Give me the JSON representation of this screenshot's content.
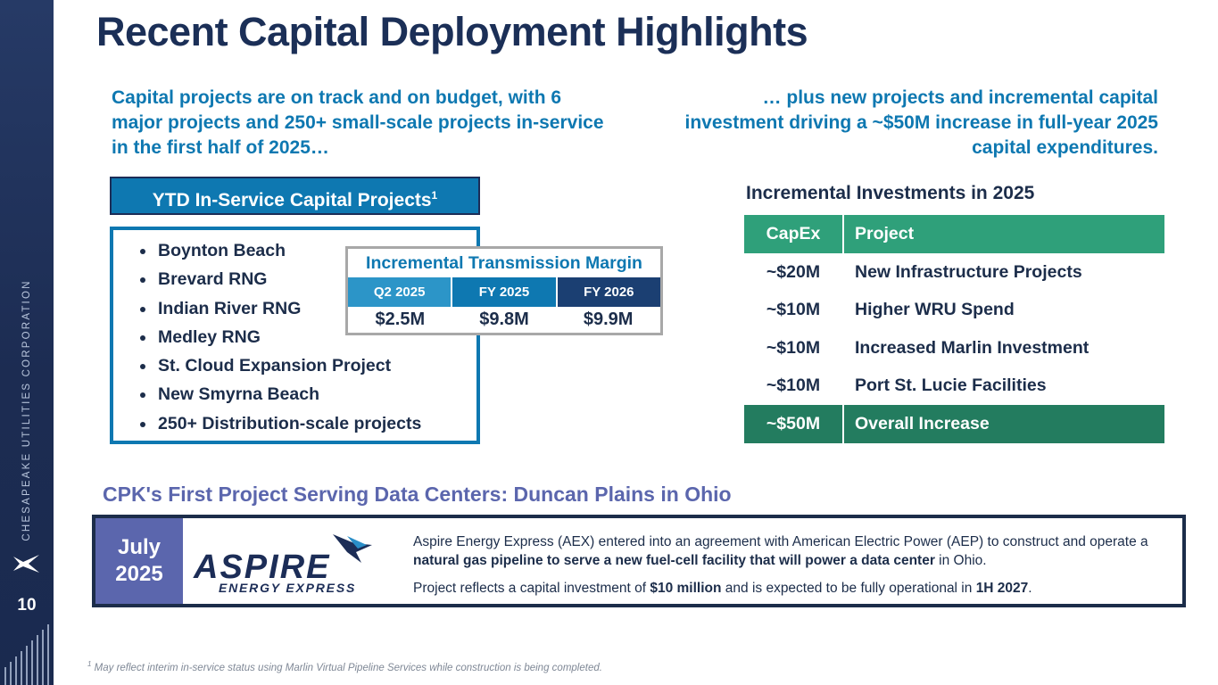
{
  "sidebar": {
    "company_vertical": "CHESAPEAKE UTILITIES CORPORATION",
    "page_number": "10"
  },
  "title": "Recent Capital Deployment Highlights",
  "intro_left": "Capital projects are on track and on budget, with 6 major projects and 250+ small-scale projects in-service in the first half of 2025…",
  "intro_right": "… plus new projects and incremental capital investment driving a ~$50M increase in full-year 2025 capital expenditures.",
  "ytd": {
    "header": "YTD In-Service Capital Projects",
    "header_sup": "1",
    "items": [
      "Boynton Beach",
      "Brevard RNG",
      "Indian River RNG",
      "Medley RNG",
      "St. Cloud Expansion Project",
      "New Smyrna Beach",
      "250+ Distribution-scale  projects"
    ]
  },
  "margin": {
    "title": "Incremental Transmission Margin",
    "columns": [
      {
        "label": "Q2 2025",
        "value": "$2.5M",
        "color": "#2c95c8"
      },
      {
        "label": "FY 2025",
        "value": "$9.8M",
        "color": "#0e78b1"
      },
      {
        "label": "FY 2026",
        "value": "$9.9M",
        "color": "#1b3f72"
      }
    ]
  },
  "incremental": {
    "title": "Incremental Investments in 2025",
    "header": {
      "capex": "CapEx",
      "project": "Project"
    },
    "rows": [
      {
        "capex": "~$20M",
        "project": "New Infrastructure Projects"
      },
      {
        "capex": "~$10M",
        "project": "Higher WRU Spend"
      },
      {
        "capex": "~$10M",
        "project": "Increased Marlin Investment"
      },
      {
        "capex": "~$10M",
        "project": "Port St. Lucie Facilities"
      }
    ],
    "total": {
      "capex": "~$50M",
      "project": "Overall Increase"
    }
  },
  "data_center": {
    "title": "CPK's First Project Serving Data Centers: Duncan Plains in Ohio",
    "date_month": "July",
    "date_year": "2025",
    "logo_word": "ASPIRE",
    "logo_sub": "ENERGY EXPRESS",
    "p1_a": "Aspire Energy Express (AEX) entered into an agreement with  American Electric Power (AEP) to construct and operate a ",
    "p1_b": "natural gas pipeline to serve a new fuel-cell facility that will power a data center",
    "p1_c": " in Ohio.",
    "p2_a": "Project reflects a capital investment of ",
    "p2_b": "$10 million",
    "p2_c": " and is expected to be fully operational in ",
    "p2_d": "1H 2027",
    "p2_e": "."
  },
  "footnote": {
    "sup": "1",
    "text": " May reflect interim in-service status using Marlin Virtual Pipeline Services while construction is being completed."
  }
}
